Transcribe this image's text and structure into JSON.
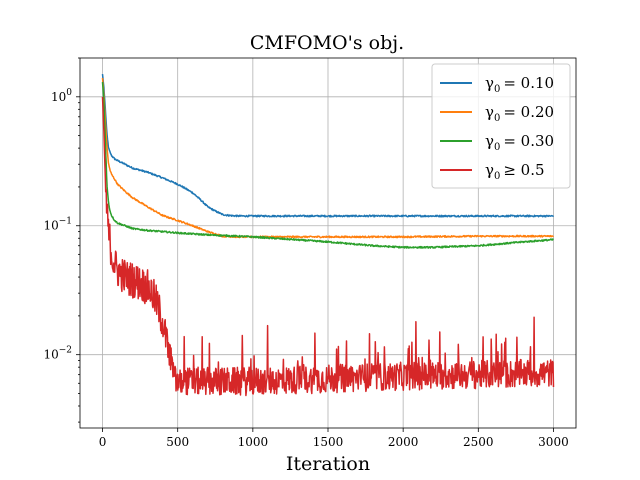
{
  "chart_data": {
    "type": "line",
    "title": "CMFOMO's obj.",
    "xlabel": "Iteration",
    "ylabel": "",
    "yscale": "log",
    "xlim": [
      -150,
      3150
    ],
    "ylim": [
      0.0027,
      2.0
    ],
    "grid": true,
    "legend_position": "top-right",
    "x_ticks": [
      0,
      500,
      1000,
      1500,
      2000,
      2500,
      3000
    ],
    "x_tick_labels": [
      "0",
      "500",
      "1000",
      "1500",
      "2000",
      "2500",
      "3000"
    ],
    "y_ticks": [
      1,
      0.1,
      0.01
    ],
    "y_tick_labels": [
      {
        "base": "10",
        "exp": "0"
      },
      {
        "base": "10",
        "exp": "−1"
      },
      {
        "base": "10",
        "exp": "−2"
      }
    ],
    "series": [
      {
        "name": "γ₀ = 0.10",
        "legend_sym": "γ",
        "legend_sub": "0",
        "legend_rel": "= 0.10",
        "color": "#1f77b4",
        "x": [
          0,
          10,
          20,
          30,
          40,
          50,
          60,
          80,
          100,
          150,
          200,
          300,
          400,
          500,
          550,
          600,
          650,
          700,
          750,
          800,
          850,
          900,
          1000,
          1500,
          2000,
          2500,
          3000
        ],
        "y": [
          1.5,
          1.15,
          0.75,
          0.5,
          0.4,
          0.37,
          0.35,
          0.33,
          0.32,
          0.3,
          0.28,
          0.26,
          0.235,
          0.21,
          0.195,
          0.18,
          0.16,
          0.14,
          0.13,
          0.122,
          0.12,
          0.119,
          0.119,
          0.119,
          0.119,
          0.119,
          0.119
        ],
        "noise": 0.012
      },
      {
        "name": "γ₀ = 0.20",
        "legend_sym": "γ",
        "legend_sub": "0",
        "legend_rel": "= 0.20",
        "color": "#ff7f0e",
        "x": [
          0,
          10,
          20,
          30,
          40,
          50,
          60,
          80,
          100,
          150,
          200,
          300,
          400,
          500,
          600,
          700,
          800,
          900,
          1000,
          1500,
          2000,
          2500,
          3000
        ],
        "y": [
          1.4,
          1.0,
          0.6,
          0.4,
          0.3,
          0.27,
          0.25,
          0.23,
          0.21,
          0.185,
          0.165,
          0.14,
          0.12,
          0.11,
          0.1,
          0.09,
          0.083,
          0.082,
          0.082,
          0.082,
          0.082,
          0.083,
          0.083
        ],
        "noise": 0.012
      },
      {
        "name": "γ₀ = 0.30",
        "legend_sym": "γ",
        "legend_sub": "0",
        "legend_rel": "= 0.30",
        "color": "#2ca02c",
        "x": [
          0,
          10,
          20,
          30,
          40,
          50,
          60,
          80,
          100,
          150,
          200,
          300,
          400,
          500,
          700,
          1000,
          1500,
          1800,
          2000,
          2200,
          2500,
          2800,
          3000
        ],
        "y": [
          1.3,
          0.9,
          0.4,
          0.2,
          0.15,
          0.13,
          0.12,
          0.11,
          0.105,
          0.1,
          0.095,
          0.092,
          0.09,
          0.088,
          0.085,
          0.082,
          0.075,
          0.07,
          0.068,
          0.068,
          0.07,
          0.075,
          0.078
        ],
        "noise": 0.012
      },
      {
        "name": "γ₀ ≥ 0.5",
        "legend_sym": "γ",
        "legend_sub": "0",
        "legend_rel": "≥ 0.5",
        "color": "#d62728",
        "x": [
          0,
          10,
          20,
          30,
          40,
          50,
          60,
          80,
          100,
          150,
          200,
          250,
          300,
          330,
          360,
          400,
          430,
          460,
          480,
          500,
          550,
          1000,
          1500,
          2000,
          2500,
          3000
        ],
        "y": [
          1.0,
          0.5,
          0.2,
          0.12,
          0.09,
          0.075,
          0.06,
          0.05,
          0.045,
          0.04,
          0.038,
          0.036,
          0.033,
          0.03,
          0.025,
          0.018,
          0.012,
          0.008,
          0.0065,
          0.006,
          0.0062,
          0.0062,
          0.0065,
          0.0068,
          0.007,
          0.0072
        ],
        "noise": 0.28
      }
    ]
  }
}
